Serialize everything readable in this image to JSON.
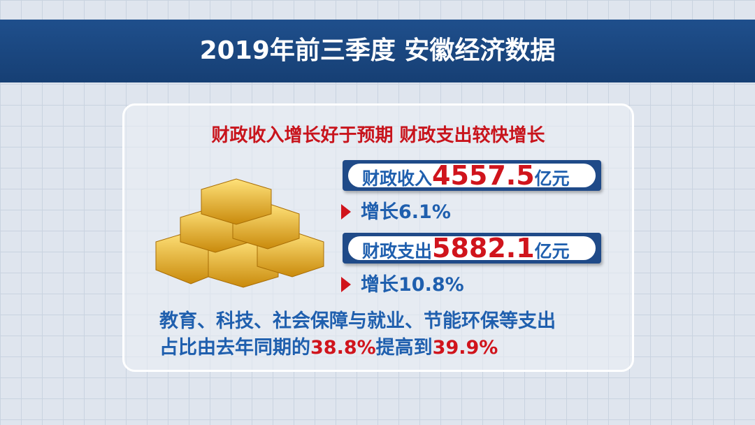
{
  "header": {
    "title": "2019年前三季度  安徽经济数据"
  },
  "panel": {
    "subtitle": "财政收入增长好于预期  财政支出较快增长",
    "items": [
      {
        "label": "财政收入",
        "value": "4557.5",
        "unit": "亿元",
        "growth_label": "增长",
        "growth": "6.1%"
      },
      {
        "label": "财政支出",
        "value": "5882.1",
        "unit": "亿元",
        "growth_label": "增长",
        "growth": "10.8%"
      }
    ],
    "note": {
      "line1": "教育、科技、社会保障与就业、节能环保等支出",
      "prefix": "占比由去年同期的",
      "from": "38.8%",
      "middle": "提高到",
      "to": "39.9%"
    }
  }
}
